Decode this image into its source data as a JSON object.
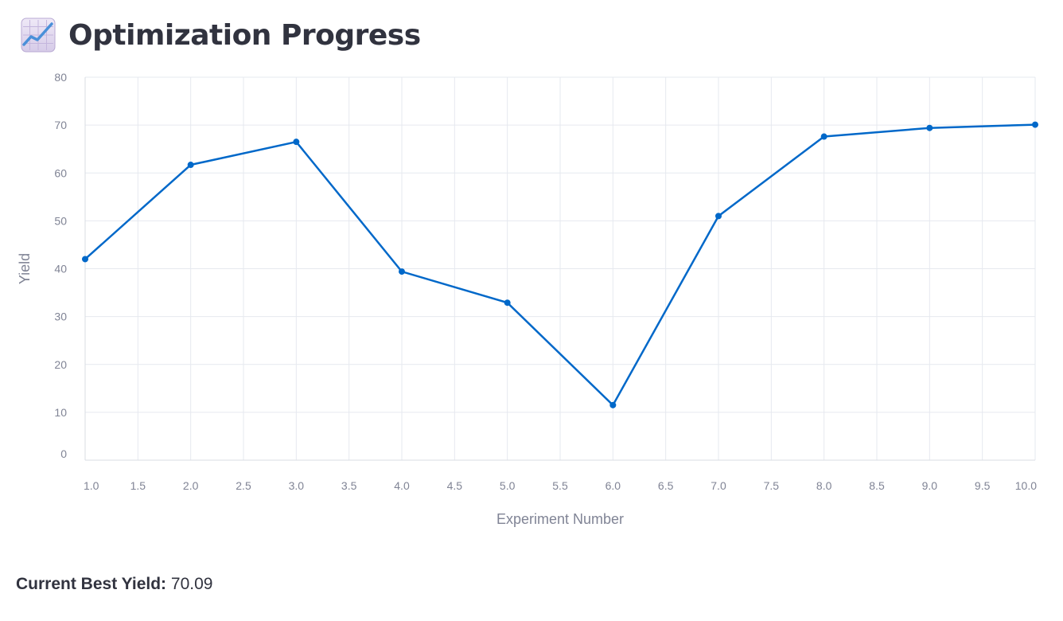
{
  "header": {
    "icon": "chart-increasing-icon",
    "title": "Optimization Progress"
  },
  "chart_data": {
    "type": "line",
    "xlabel": "Experiment Number",
    "ylabel": "Yield",
    "xlim": [
      1,
      10
    ],
    "ylim": [
      0,
      80
    ],
    "x_ticks": [
      "1.0",
      "1.5",
      "2.0",
      "2.5",
      "3.0",
      "3.5",
      "4.0",
      "4.5",
      "5.0",
      "5.5",
      "6.0",
      "6.5",
      "7.0",
      "7.5",
      "8.0",
      "8.5",
      "9.0",
      "9.5",
      "10.0"
    ],
    "y_ticks": [
      "0",
      "10",
      "20",
      "30",
      "40",
      "50",
      "60",
      "70",
      "80"
    ],
    "grid": true,
    "color": "#0068c9",
    "series": [
      {
        "x": [
          1,
          2,
          3,
          4,
          5,
          6,
          7,
          8,
          9,
          10
        ],
        "y": [
          42.0,
          61.7,
          66.5,
          39.4,
          32.9,
          11.5,
          51.0,
          67.6,
          69.4,
          70.09
        ]
      }
    ]
  },
  "summary": {
    "label": "Current Best Yield:",
    "value": "70.09"
  }
}
